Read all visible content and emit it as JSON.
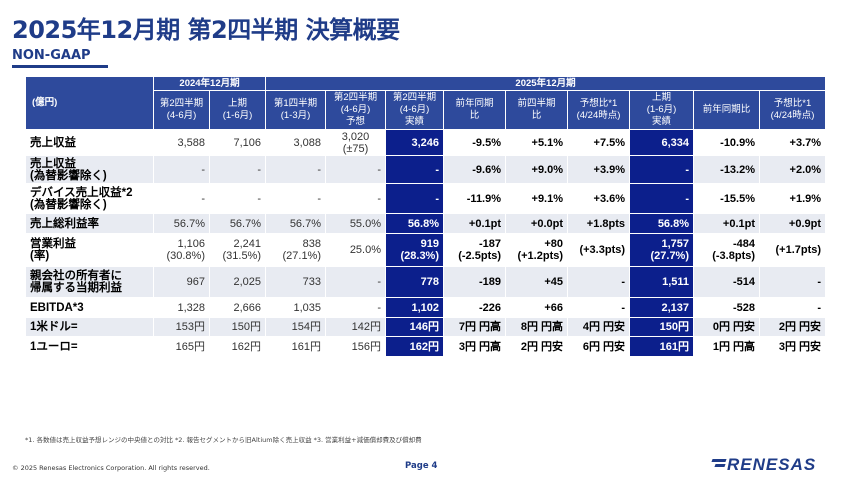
{
  "header": {
    "title": "2025年12月期 第2四半期 決算概要",
    "subtitle": "NON-GAAP"
  },
  "table": {
    "unit_label": "(億円)",
    "group_2024": "2024年12月期",
    "group_2025": "2025年12月期",
    "columns": [
      "第2四半期\n(4-6月)",
      "上期\n(1-6月)",
      "第1四半期\n(1-3月)",
      "第2四半期\n(4-6月)\n予想",
      "第2四半期\n(4-6月)\n実績",
      "前年同期\n比",
      "前四半期\n比",
      "予想比*1\n(4/24時点)",
      "上期\n(1-6月)\n実績",
      "前年同期比",
      "予想比*1\n(4/24時点)"
    ],
    "rows": [
      {
        "label": "売上収益",
        "cells": [
          "3,588",
          "7,106",
          "3,088",
          "3,020\n(±75)",
          "3,246",
          "-9.5%",
          "+5.1%",
          "+7.5%",
          "6,334",
          "-10.9%",
          "+3.7%"
        ]
      },
      {
        "label": "売上収益\n(為替影響除く)",
        "cells": [
          "-",
          "-",
          "-",
          "-",
          "-",
          "-9.6%",
          "+9.0%",
          "+3.9%",
          "-",
          "-13.2%",
          "+2.0%"
        ]
      },
      {
        "label": "デバイス売上収益*2\n(為替影響除く)",
        "cells": [
          "-",
          "-",
          "-",
          "-",
          "-",
          "-11.9%",
          "+9.1%",
          "+3.6%",
          "-",
          "-15.5%",
          "+1.9%"
        ]
      },
      {
        "label": "売上総利益率",
        "cells": [
          "56.7%",
          "56.7%",
          "56.7%",
          "55.0%",
          "56.8%",
          "+0.1pt",
          "+0.0pt",
          "+1.8pts",
          "56.8%",
          "+0.1pt",
          "+0.9pt"
        ]
      },
      {
        "label": "営業利益\n(率)",
        "cells": [
          "1,106\n(30.8%)",
          "2,241\n(31.5%)",
          "838\n(27.1%)",
          "25.0%",
          "919\n(28.3%)",
          "-187\n(-2.5pts)",
          "+80\n(+1.2pts)",
          "(+3.3pts)",
          "1,757\n(27.7%)",
          "-484\n(-3.8pts)",
          "(+1.7pts)"
        ]
      },
      {
        "label": "親会社の所有者に\n帰属する当期利益",
        "cells": [
          "967",
          "2,025",
          "733",
          "-",
          "778",
          "-189",
          "+45",
          "-",
          "1,511",
          "-514",
          "-"
        ]
      },
      {
        "label": "EBITDA*3",
        "cells": [
          "1,328",
          "2,666",
          "1,035",
          "-",
          "1,102",
          "-226",
          "+66",
          "-",
          "2,137",
          "-528",
          "-"
        ]
      },
      {
        "label": "1米ドル=",
        "cells": [
          "153円",
          "150円",
          "154円",
          "142円",
          "146円",
          "7円 円高",
          "8円 円高",
          "4円 円安",
          "150円",
          "0円 円安",
          "2円 円安"
        ]
      },
      {
        "label": "1ユーロ=",
        "cells": [
          "165円",
          "162円",
          "161円",
          "156円",
          "162円",
          "3円 円高",
          "2円 円安",
          "6円 円安",
          "161円",
          "1円 円高",
          "3円 円安"
        ]
      }
    ]
  },
  "footnote": "*1. 各数値は売上収益予想レンジの中央値との対比 *2. 報告セグメントから旧Altium除く売上収益 *3. 営業利益+減価償却費及び償却費",
  "footer": {
    "copyright": "© 2025 Renesas Electronics Corporation. All rights reserved.",
    "page": "Page 4",
    "logo_text": "RENESAS"
  }
}
